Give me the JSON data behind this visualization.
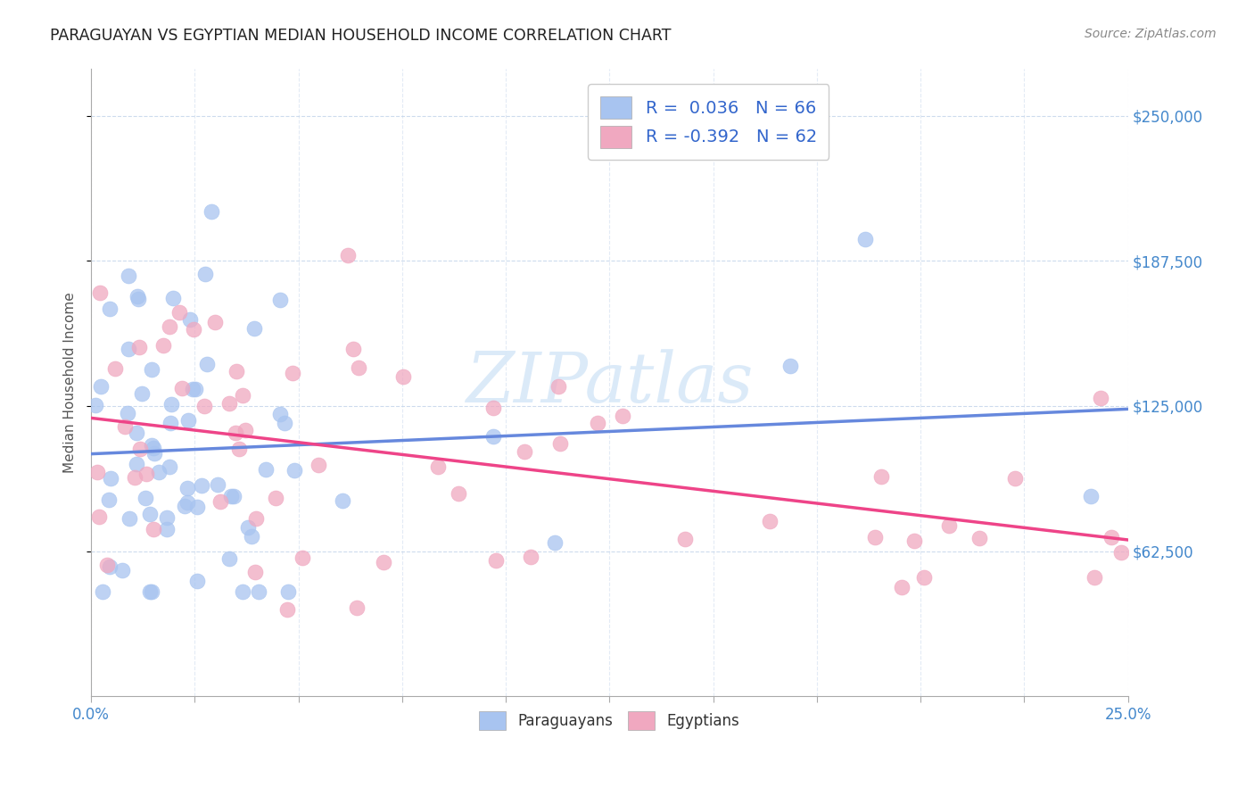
{
  "title": "PARAGUAYAN VS EGYPTIAN MEDIAN HOUSEHOLD INCOME CORRELATION CHART",
  "source": "Source: ZipAtlas.com",
  "ylabel": "Median Household Income",
  "yticks": [
    62500,
    125000,
    187500,
    250000
  ],
  "ytick_labels": [
    "$62,500",
    "$125,000",
    "$187,500",
    "$250,000"
  ],
  "xmin": 0.0,
  "xmax": 0.25,
  "ymin": 0,
  "ymax": 270000,
  "xtick_positions": [
    0.0,
    0.025,
    0.05,
    0.075,
    0.1,
    0.125,
    0.15,
    0.175,
    0.2,
    0.225,
    0.25
  ],
  "color_blue": "#a8c4f0",
  "color_pink": "#f0a8c0",
  "line_blue": "#6688dd",
  "line_pink": "#ee4488",
  "watermark": "ZIPatlas",
  "par_R": 0.036,
  "par_N": 66,
  "egy_R": -0.392,
  "egy_N": 62,
  "legend1_text": "R =  0.036   N = 66",
  "legend2_text": "R = -0.392   N = 62",
  "legend_r_color": "#3366cc",
  "bottom_label1": "Paraguayans",
  "bottom_label2": "Egyptians",
  "par_intercept": 98000,
  "par_slope": 80000,
  "egy_intercept": 128000,
  "egy_slope": -270000
}
